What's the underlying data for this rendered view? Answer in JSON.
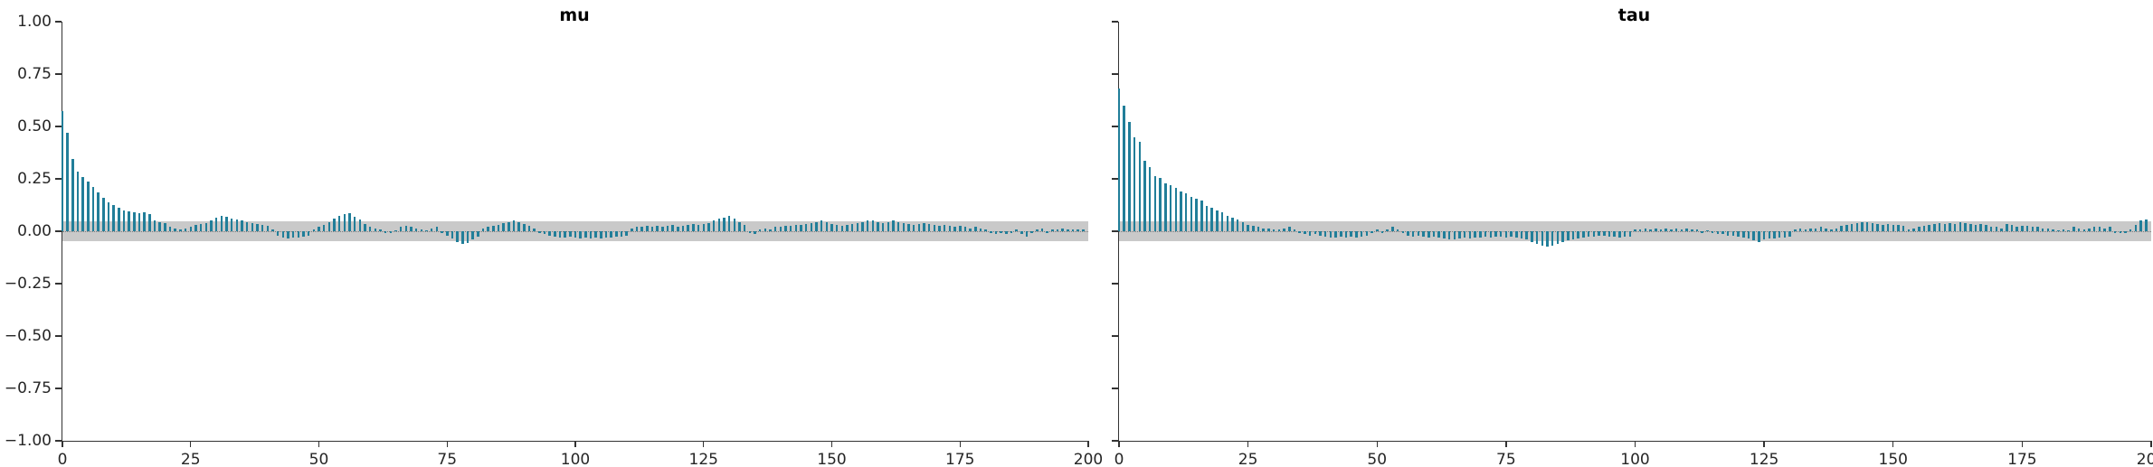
{
  "figure": {
    "background": "#ffffff",
    "bar_color": "#217e99",
    "band_color": "#c9c9c9",
    "axis_color": "#333333",
    "text_color": "#262626"
  },
  "chart_data": [
    {
      "type": "bar",
      "title": "mu",
      "xlabel": "",
      "ylabel": "",
      "xlim": [
        0,
        200
      ],
      "ylim": [
        -1.0,
        1.0
      ],
      "grid": false,
      "legend": "none",
      "confidence_band_halfwidth": 0.046,
      "x_ticks": [
        0,
        25,
        50,
        75,
        100,
        125,
        150,
        175,
        200
      ],
      "y_ticks": [
        1.0,
        0.75,
        0.5,
        0.25,
        0.0,
        -0.25,
        -0.5,
        -0.75,
        -1.0
      ],
      "y_tick_labels": [
        "1.00",
        "0.75",
        "0.50",
        "0.25",
        "0.00",
        "−0.25",
        "−0.50",
        "−0.75",
        "−1.00"
      ],
      "show_y_tick_labels": true,
      "lags": {
        "start": 0,
        "step": 1,
        "count": 200
      },
      "values": [
        0.575,
        0.47,
        0.345,
        0.285,
        0.26,
        0.235,
        0.21,
        0.185,
        0.16,
        0.14,
        0.125,
        0.11,
        0.1,
        0.095,
        0.09,
        0.085,
        0.09,
        0.08,
        0.05,
        0.045,
        0.04,
        0.02,
        0.015,
        0.01,
        0.015,
        0.02,
        0.03,
        0.035,
        0.04,
        0.05,
        0.065,
        0.075,
        0.07,
        0.06,
        0.055,
        0.05,
        0.045,
        0.04,
        0.035,
        0.03,
        0.025,
        0.01,
        -0.02,
        -0.03,
        -0.035,
        -0.03,
        -0.03,
        -0.025,
        -0.02,
        0.01,
        0.02,
        0.03,
        0.045,
        0.06,
        0.075,
        0.08,
        0.085,
        0.07,
        0.055,
        0.035,
        0.02,
        0.015,
        0.01,
        -0.01,
        -0.01,
        0.005,
        0.02,
        0.025,
        0.02,
        0.015,
        0.01,
        0.005,
        0.015,
        0.02,
        -0.01,
        -0.02,
        -0.035,
        -0.05,
        -0.06,
        -0.055,
        -0.04,
        -0.025,
        0.015,
        0.02,
        0.025,
        0.03,
        0.04,
        0.045,
        0.05,
        0.045,
        0.035,
        0.025,
        0.015,
        -0.01,
        -0.015,
        -0.02,
        -0.025,
        -0.03,
        -0.03,
        -0.025,
        -0.03,
        -0.035,
        -0.03,
        -0.035,
        -0.03,
        -0.035,
        -0.03,
        -0.03,
        -0.025,
        -0.025,
        -0.02,
        0.015,
        0.02,
        0.02,
        0.025,
        0.02,
        0.025,
        0.02,
        0.025,
        0.03,
        0.02,
        0.025,
        0.03,
        0.035,
        0.03,
        0.035,
        0.04,
        0.05,
        0.06,
        0.065,
        0.075,
        0.06,
        0.045,
        0.03,
        -0.01,
        -0.015,
        0.01,
        0.015,
        0.01,
        0.02,
        0.02,
        0.025,
        0.025,
        0.03,
        0.03,
        0.035,
        0.04,
        0.045,
        0.05,
        0.045,
        0.035,
        0.03,
        0.025,
        0.03,
        0.035,
        0.04,
        0.045,
        0.05,
        0.05,
        0.045,
        0.04,
        0.045,
        0.05,
        0.045,
        0.04,
        0.035,
        0.03,
        0.035,
        0.04,
        0.035,
        0.03,
        0.025,
        0.03,
        0.025,
        0.02,
        0.025,
        0.02,
        0.015,
        0.02,
        0.015,
        0.01,
        -0.01,
        -0.015,
        -0.01,
        -0.015,
        -0.01,
        0.01,
        -0.015,
        -0.025,
        -0.01,
        0.01,
        0.015,
        -0.01,
        0.01,
        0.01,
        0.015,
        0.01,
        0.01,
        0.01,
        0.01
      ]
    },
    {
      "type": "bar",
      "title": "tau",
      "xlabel": "",
      "ylabel": "",
      "xlim": [
        0,
        200
      ],
      "ylim": [
        -1.0,
        1.0
      ],
      "grid": false,
      "legend": "none",
      "confidence_band_halfwidth": 0.046,
      "x_ticks": [
        0,
        25,
        50,
        75,
        100,
        125,
        150,
        175,
        200
      ],
      "y_ticks": [
        1.0,
        0.75,
        0.5,
        0.25,
        0.0,
        -0.25,
        -0.5,
        -0.75,
        -1.0
      ],
      "y_tick_labels": [
        "1.00",
        "0.75",
        "0.50",
        "0.25",
        "0.00",
        "−0.25",
        "−0.50",
        "−0.75",
        "−1.00"
      ],
      "show_y_tick_labels": false,
      "lags": {
        "start": 0,
        "step": 1,
        "count": 200
      },
      "values": [
        0.68,
        0.6,
        0.52,
        0.45,
        0.425,
        0.335,
        0.305,
        0.265,
        0.255,
        0.23,
        0.22,
        0.205,
        0.19,
        0.18,
        0.165,
        0.155,
        0.145,
        0.12,
        0.11,
        0.1,
        0.09,
        0.075,
        0.065,
        0.055,
        0.045,
        0.03,
        0.025,
        0.02,
        0.015,
        0.015,
        0.01,
        0.01,
        0.015,
        0.02,
        0.01,
        -0.01,
        -0.015,
        -0.02,
        -0.015,
        -0.02,
        -0.025,
        -0.03,
        -0.03,
        -0.025,
        -0.03,
        -0.025,
        -0.03,
        -0.025,
        -0.02,
        -0.01,
        0.01,
        -0.01,
        0.01,
        0.02,
        0.01,
        -0.005,
        -0.02,
        -0.025,
        -0.02,
        -0.025,
        -0.03,
        -0.025,
        -0.03,
        -0.035,
        -0.04,
        -0.04,
        -0.035,
        -0.03,
        -0.035,
        -0.03,
        -0.03,
        -0.025,
        -0.03,
        -0.025,
        -0.025,
        -0.03,
        -0.025,
        -0.03,
        -0.035,
        -0.04,
        -0.05,
        -0.06,
        -0.07,
        -0.075,
        -0.07,
        -0.06,
        -0.05,
        -0.045,
        -0.04,
        -0.035,
        -0.03,
        -0.025,
        -0.025,
        -0.02,
        -0.02,
        -0.025,
        -0.025,
        -0.03,
        -0.025,
        -0.025,
        0.01,
        0.01,
        0.015,
        0.01,
        0.015,
        0.01,
        0.015,
        0.01,
        0.015,
        0.01,
        0.015,
        0.01,
        0.01,
        -0.005,
        0.005,
        -0.01,
        -0.015,
        -0.015,
        -0.02,
        -0.02,
        -0.025,
        -0.03,
        -0.035,
        -0.045,
        -0.05,
        -0.04,
        -0.035,
        -0.035,
        -0.03,
        -0.03,
        -0.025,
        0.01,
        0.015,
        0.01,
        0.015,
        0.015,
        0.02,
        0.015,
        0.01,
        0.015,
        0.025,
        0.03,
        0.035,
        0.04,
        0.045,
        0.045,
        0.04,
        0.035,
        0.03,
        0.035,
        0.03,
        0.03,
        0.025,
        0.01,
        0.015,
        0.02,
        0.025,
        0.03,
        0.035,
        0.04,
        0.035,
        0.04,
        0.035,
        0.045,
        0.04,
        0.035,
        0.03,
        0.035,
        0.03,
        0.02,
        0.02,
        0.015,
        0.035,
        0.03,
        0.02,
        0.025,
        0.025,
        0.02,
        0.02,
        0.015,
        0.015,
        0.01,
        0.005,
        0.01,
        0.005,
        0.02,
        0.015,
        0.01,
        0.015,
        0.02,
        0.02,
        0.015,
        0.02,
        -0.005,
        -0.005,
        -0.01,
        0.01,
        0.03,
        0.05,
        0.055
      ]
    }
  ]
}
